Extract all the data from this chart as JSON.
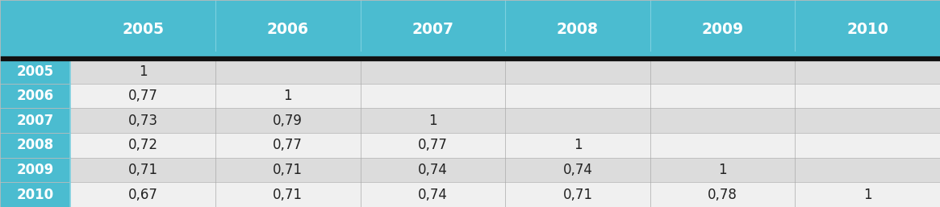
{
  "years": [
    "2005",
    "2006",
    "2007",
    "2008",
    "2009",
    "2010"
  ],
  "values": [
    [
      "1",
      "",
      "",
      "",
      "",
      ""
    ],
    [
      "0,77",
      "1",
      "",
      "",
      "",
      ""
    ],
    [
      "0,73",
      "0,79",
      "1",
      "",
      "",
      ""
    ],
    [
      "0,72",
      "0,77",
      "0,77",
      "1",
      "",
      ""
    ],
    [
      "0,71",
      "0,71",
      "0,74",
      "0,74",
      "1",
      ""
    ],
    [
      "0,67",
      "0,71",
      "0,74",
      "0,71",
      "0,78",
      "1"
    ]
  ],
  "header_bg": "#4BBCD0",
  "header_text_color": "#FFFFFF",
  "row_label_bg": "#4BBCD0",
  "row_label_text_color": "#FFFFFF",
  "row_bg_odd": "#DCDCDC",
  "row_bg_even": "#F0F0F0",
  "cell_text_color": "#222222",
  "separator_color": "#5AB8CC",
  "thick_line_color": "#111111",
  "figsize": [
    11.65,
    2.57
  ],
  "dpi": 100
}
